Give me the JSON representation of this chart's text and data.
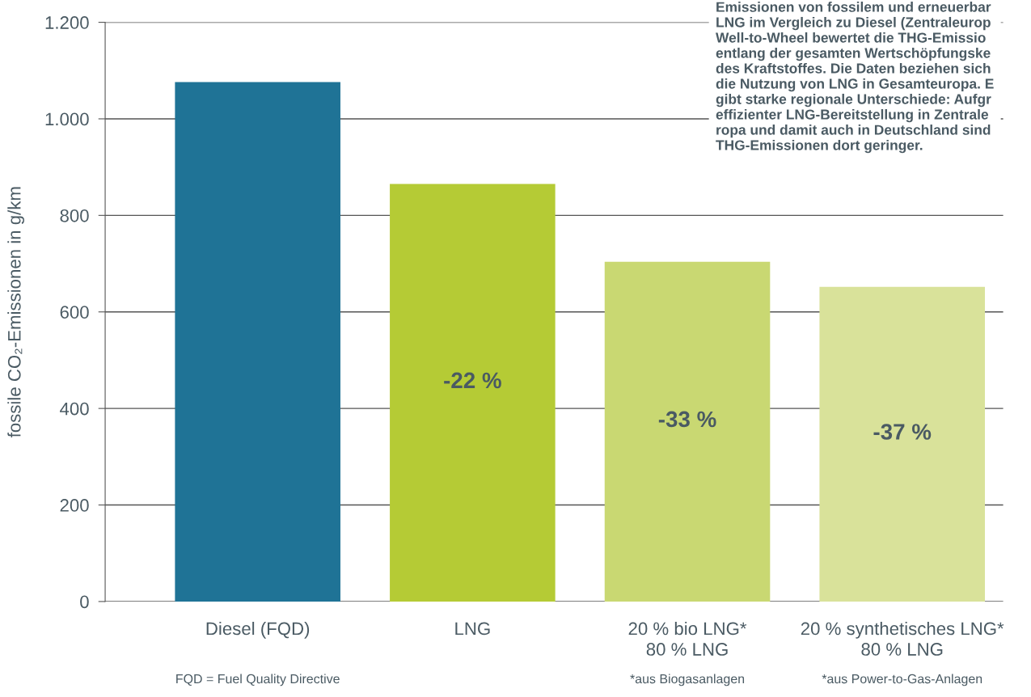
{
  "chart_data": {
    "type": "bar",
    "ylabel": "fossile CO₂-Emissionen in g/km",
    "categories": [
      "Diesel (FQD)",
      "LNG",
      "20 % bio LNG*\n80 % LNG",
      "20 % synthetisches LNG*\n80 % LNG"
    ],
    "values": [
      1076,
      865,
      704,
      652
    ],
    "colors": [
      "#1f7396",
      "#b5cb35",
      "#c9d872",
      "#d9e29a"
    ],
    "ylim": [
      0,
      1200
    ],
    "yticks": [
      0,
      200,
      400,
      600,
      800,
      {
        "value": 1000,
        "label": "1.000"
      },
      {
        "value": 1200,
        "label": "1.200"
      }
    ],
    "grid": "y",
    "annotations": [
      "-22 %",
      "-33 %",
      "-37 %",
      "FQD = Fuel Quality Directive",
      "*aus Biogasanlagen",
      "*aus Power-to-Gas-Anlagen",
      "Emissionen von fossilem und erneuerbar\nLNG im Vergleich zu Diesel (Zentraleurop\nWell-to-Wheel bewertet die THG-Emissio\nentlang der gesamten Wertschöpfungske\ndes Kraftstoffes. Die Daten beziehen sich\ndie Nutzung von LNG in Gesamteuropa. E\ngibt starke regionale Unterschiede: Aufgr\neffizienter LNG-Bereitstellung in Zentrale\nropa und damit auch in Deutschland sind\nTHG-Emissionen dort geringer."
    ]
  }
}
